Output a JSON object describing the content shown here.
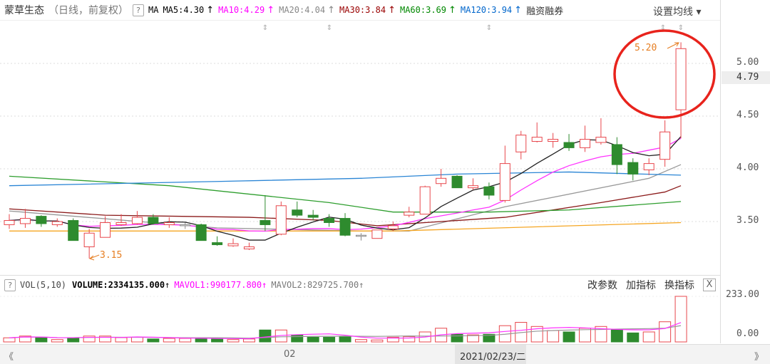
{
  "header": {
    "stock_name": "蒙草生态",
    "subtitle": "（日线，前复权）",
    "help": "?",
    "ma_label": "MA",
    "ma": [
      {
        "label": "MA5:4.30",
        "arrow": "↑",
        "color": "#000000"
      },
      {
        "label": "MA10:4.29",
        "arrow": "↑",
        "color": "#ff00ff"
      },
      {
        "label": "MA20:4.04",
        "arrow": "↑",
        "color": "#888888"
      },
      {
        "label": "MA30:3.84",
        "arrow": "↑",
        "color": "#990000"
      },
      {
        "label": "MA60:3.69",
        "arrow": "↑",
        "color": "#008800"
      },
      {
        "label": "MA120:3.94",
        "arrow": "↑",
        "color": "#0066cc"
      }
    ],
    "margin_trading": "融资融券",
    "set_ma": "设置均线 ▾"
  },
  "price_axis": {
    "labels": [
      "5.00",
      "4.50",
      "4.00",
      "3.50"
    ],
    "current": "4.79"
  },
  "volume_header": {
    "help": "?",
    "name": "VOL(5,10)",
    "volume": "VOLUME:2334135.000",
    "volume_arrow": "↑",
    "mavol1": "MAVOL1:990177.800",
    "mavol1_arrow": "↑",
    "mavol2": "MAVOL2:829725.700",
    "mavol2_arrow": "↑",
    "buttons": [
      "改参数",
      "加指标",
      "换指标"
    ],
    "close": "X"
  },
  "volume_axis": {
    "labels": [
      "233.00",
      "0.00"
    ]
  },
  "bottom_bar": {
    "prev": "《",
    "month_label": "02",
    "date_label": "2021/02/23/二",
    "next": "》"
  },
  "colors": {
    "up": "#e8474c",
    "down": "#2e8b2e",
    "annotation": "#e8231c",
    "label": "#e67e22",
    "ma250": "#f5a623"
  },
  "chart_data": {
    "type": "candlestick",
    "ylim": [
      3.1,
      5.3
    ],
    "annotations": {
      "high": "5.20",
      "low": "3.15"
    },
    "candles": [
      [
        3.47,
        3.57,
        3.43,
        3.51
      ],
      [
        3.48,
        3.62,
        3.44,
        3.53
      ],
      [
        3.55,
        3.56,
        3.45,
        3.48
      ],
      [
        3.47,
        3.53,
        3.45,
        3.5
      ],
      [
        3.51,
        3.53,
        3.32,
        3.32
      ],
      [
        3.26,
        3.43,
        3.15,
        3.39
      ],
      [
        3.35,
        3.55,
        3.35,
        3.49
      ],
      [
        3.47,
        3.57,
        3.46,
        3.49
      ],
      [
        3.48,
        3.6,
        3.47,
        3.54
      ],
      [
        3.54,
        3.57,
        3.47,
        3.48
      ],
      [
        3.47,
        3.54,
        3.44,
        3.49
      ],
      [
        3.47,
        3.49,
        3.43,
        3.47
      ],
      [
        3.47,
        3.48,
        3.32,
        3.32
      ],
      [
        3.3,
        3.36,
        3.27,
        3.28
      ],
      [
        3.27,
        3.34,
        3.26,
        3.29
      ],
      [
        3.24,
        3.3,
        3.23,
        3.26
      ],
      [
        3.51,
        3.75,
        3.41,
        3.47
      ],
      [
        3.38,
        3.69,
        3.37,
        3.65
      ],
      [
        3.61,
        3.69,
        3.54,
        3.56
      ],
      [
        3.56,
        3.61,
        3.51,
        3.54
      ],
      [
        3.53,
        3.57,
        3.45,
        3.49
      ],
      [
        3.53,
        3.58,
        3.36,
        3.37
      ],
      [
        3.37,
        3.39,
        3.32,
        3.37
      ],
      [
        3.34,
        3.42,
        3.34,
        3.42
      ],
      [
        3.43,
        3.5,
        3.41,
        3.46
      ],
      [
        3.56,
        3.64,
        3.54,
        3.59
      ],
      [
        3.57,
        3.84,
        3.57,
        3.83
      ],
      [
        3.86,
        4.0,
        3.83,
        3.91
      ],
      [
        3.93,
        3.94,
        3.82,
        3.82
      ],
      [
        3.82,
        3.91,
        3.8,
        3.84
      ],
      [
        3.83,
        3.87,
        3.71,
        3.75
      ],
      [
        3.7,
        4.22,
        3.68,
        4.05
      ],
      [
        4.16,
        4.36,
        4.09,
        4.32
      ],
      [
        4.26,
        4.44,
        4.25,
        4.3
      ],
      [
        4.26,
        4.34,
        4.2,
        4.28
      ],
      [
        4.25,
        4.33,
        4.17,
        4.2
      ],
      [
        4.2,
        4.41,
        4.16,
        4.28
      ],
      [
        4.25,
        4.48,
        4.23,
        4.3
      ],
      [
        4.23,
        4.3,
        3.95,
        4.04
      ],
      [
        4.06,
        4.1,
        3.89,
        3.95
      ],
      [
        3.99,
        4.1,
        3.94,
        4.05
      ],
      [
        4.09,
        4.46,
        4.02,
        4.35
      ],
      [
        4.56,
        5.2,
        4.29,
        5.14
      ]
    ],
    "ma_lines": [
      {
        "name": "MA20",
        "color": "#999999",
        "points": [
          [
            0,
            3.6
          ],
          [
            13,
            3.44
          ],
          [
            22,
            3.41
          ],
          [
            25,
            3.41
          ],
          [
            31,
            3.64
          ],
          [
            40,
            3.91
          ],
          [
            42,
            4.04
          ]
        ]
      },
      {
        "name": "MA30",
        "color": "#8b1a1a",
        "points": [
          [
            0,
            3.62
          ],
          [
            6,
            3.56
          ],
          [
            15,
            3.54
          ],
          [
            20,
            3.51
          ],
          [
            23,
            3.46
          ],
          [
            31,
            3.54
          ],
          [
            37,
            3.68
          ],
          [
            41,
            3.78
          ],
          [
            42,
            3.84
          ]
        ]
      },
      {
        "name": "MA60",
        "color": "#2e9e2e",
        "points": [
          [
            0,
            3.93
          ],
          [
            10,
            3.84
          ],
          [
            20,
            3.68
          ],
          [
            24,
            3.59
          ],
          [
            30,
            3.59
          ],
          [
            35,
            3.61
          ],
          [
            42,
            3.69
          ]
        ]
      },
      {
        "name": "MA120",
        "color": "#2a85d5",
        "points": [
          [
            0,
            3.84
          ],
          [
            13,
            3.88
          ],
          [
            22,
            3.91
          ],
          [
            28,
            3.95
          ],
          [
            35,
            3.97
          ],
          [
            42,
            3.94
          ]
        ]
      },
      {
        "color": "#f5a623",
        "points": [
          [
            0,
            3.41
          ],
          [
            24,
            3.41
          ],
          [
            42,
            3.49
          ]
        ]
      }
    ],
    "volume": {
      "ylim": [
        0,
        233
      ],
      "values": [
        21,
        30,
        24,
        12,
        21,
        30,
        30,
        22,
        24,
        15,
        18,
        18,
        21,
        16,
        12,
        15,
        61,
        61,
        36,
        24,
        24,
        27,
        12,
        10,
        24,
        27,
        51,
        70,
        39,
        36,
        39,
        83,
        100,
        79,
        58,
        51,
        70,
        79,
        63,
        46,
        51,
        103,
        233
      ]
    }
  }
}
